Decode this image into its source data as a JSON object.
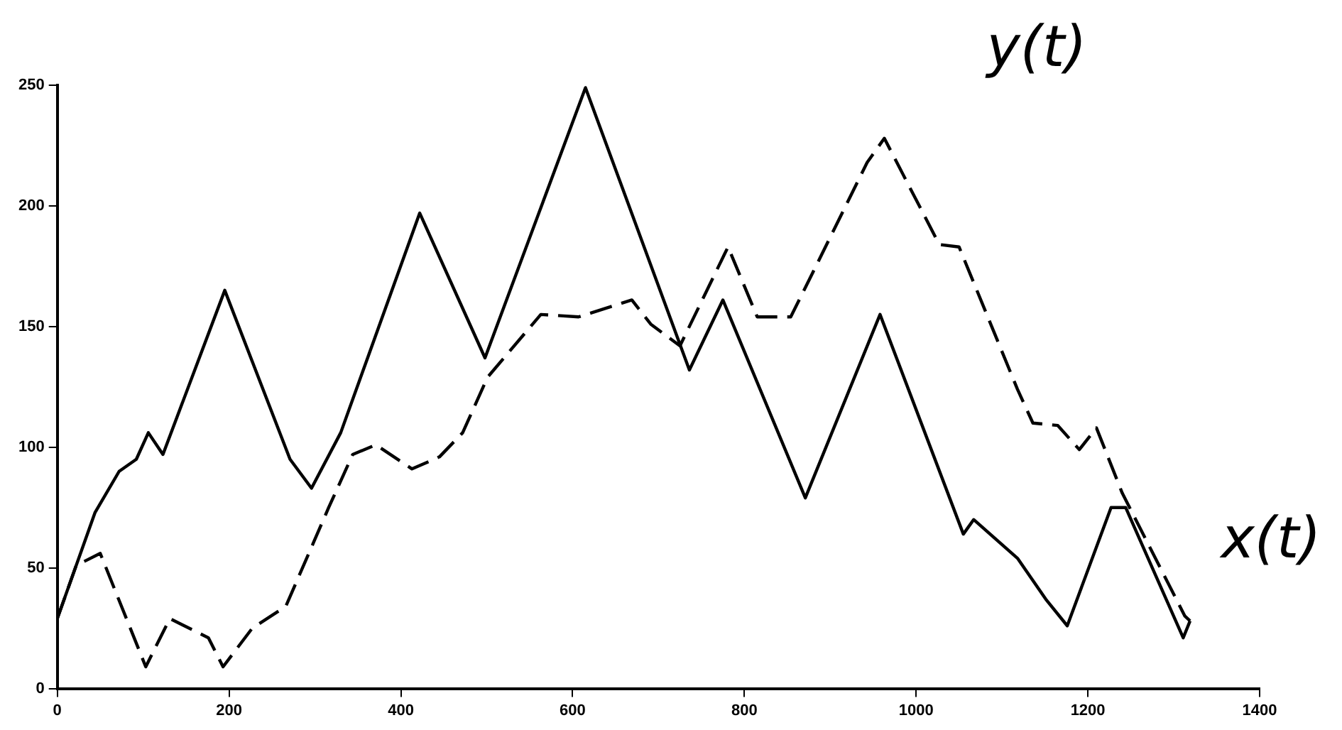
{
  "chart_data": {
    "type": "line",
    "xlim": [
      0,
      1400
    ],
    "xticks": [
      0,
      200,
      400,
      600,
      800,
      1000,
      1200,
      1400
    ],
    "ylim": [
      0,
      250
    ],
    "yticks": [
      0,
      50,
      100,
      150,
      200,
      250
    ],
    "grid": false,
    "legend": false,
    "marker": "none",
    "series": [
      {
        "name": "x(t)",
        "color": "#000000",
        "line_style": "solid",
        "x": [
          0,
          44,
          72,
          92,
          106,
          123,
          195,
          271,
          296,
          330,
          422,
          498,
          615,
          736,
          775,
          871,
          958,
          1055,
          1067,
          1118,
          1151,
          1176,
          1227,
          1244,
          1311,
          1319
        ],
        "values": [
          29,
          73,
          90,
          95,
          106,
          97,
          165,
          95,
          83,
          106,
          197,
          137,
          249,
          132,
          161,
          79,
          155,
          64,
          70,
          54,
          37,
          26,
          75,
          75,
          21,
          28
        ]
      },
      {
        "name": "y(t)",
        "color": "#000000",
        "line_style": "dashed",
        "x": [
          0,
          22,
          50,
          103,
          131,
          176,
          193,
          227,
          266,
          316,
          344,
          371,
          413,
          445,
          472,
          501,
          563,
          607,
          669,
          691,
          725,
          781,
          815,
          854,
          882,
          943,
          963,
          1027,
          1050,
          1118,
          1136,
          1165,
          1190,
          1210,
          1240,
          1313,
          1319
        ],
        "values": [
          29,
          51,
          56,
          9,
          29,
          21,
          9,
          25,
          34,
          75,
          97,
          101,
          91,
          96,
          106,
          129,
          155,
          154,
          161,
          151,
          142,
          183,
          154,
          154,
          174,
          218,
          228,
          184,
          183,
          124,
          110,
          109,
          99,
          108,
          81,
          30,
          28
        ]
      }
    ]
  }
}
